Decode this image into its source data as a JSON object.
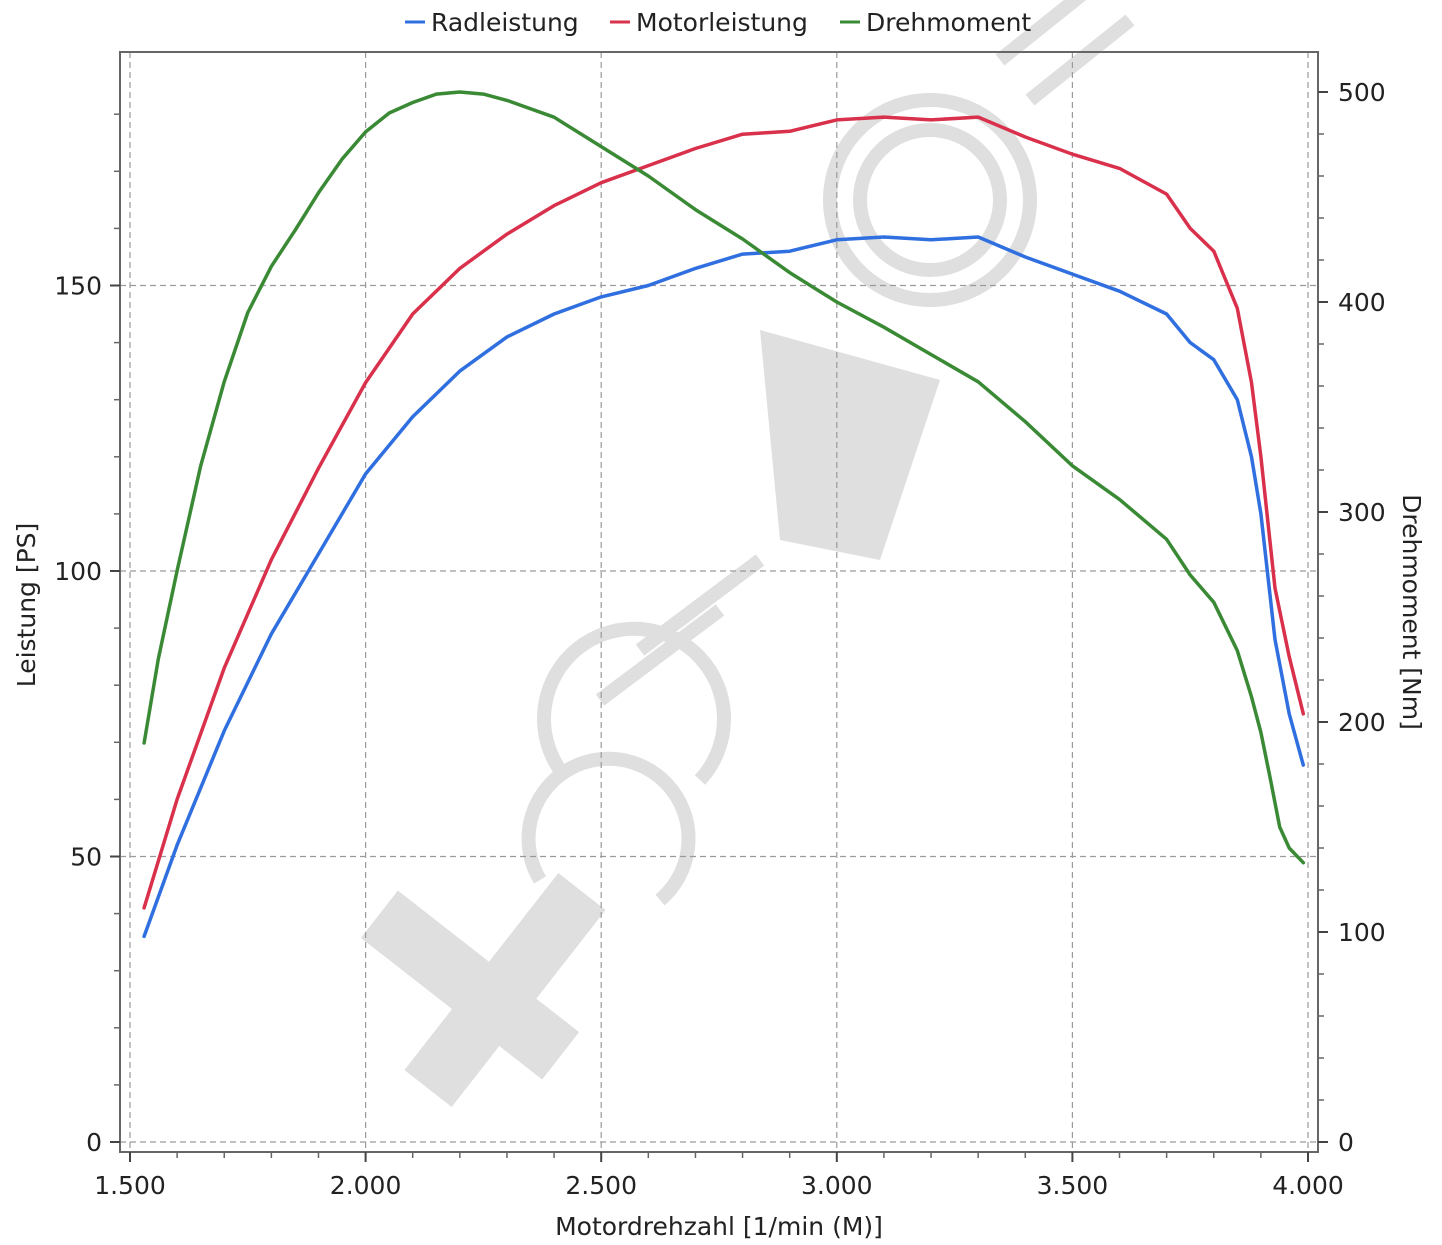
{
  "chart_data": {
    "type": "line",
    "xlabel": "Motordrehzahl [1/min (M)]",
    "ylabel_left": "Leistung [PS]",
    "ylabel_right": "Drehmoment [Nm]",
    "xlim": [
      1500,
      4000
    ],
    "ylim_left": [
      0,
      185
    ],
    "ylim_right": [
      0,
      518
    ],
    "x_ticks": [
      1500,
      2000,
      2500,
      3000,
      3500,
      4000
    ],
    "x_tick_labels": [
      "1.500",
      "2.000",
      "2.500",
      "3.000",
      "3.500",
      "4.000"
    ],
    "y_left_ticks": [
      0,
      50,
      100,
      150
    ],
    "y_left_tick_labels": [
      "0",
      "50",
      "100",
      "150"
    ],
    "y_right_ticks": [
      0,
      100,
      200,
      300,
      400,
      500
    ],
    "y_right_tick_labels": [
      "0",
      "100",
      "200",
      "300",
      "400",
      "500"
    ],
    "grid": true,
    "legend_position": "top-center",
    "series": [
      {
        "name": "Radleistung",
        "color": "#2f6fe0",
        "axis": "left",
        "x": [
          1530,
          1600,
          1700,
          1800,
          1900,
          2000,
          2100,
          2200,
          2300,
          2400,
          2500,
          2600,
          2700,
          2800,
          2900,
          3000,
          3100,
          3200,
          3300,
          3400,
          3500,
          3600,
          3700,
          3750,
          3800,
          3850,
          3880,
          3900,
          3930,
          3960,
          3990
        ],
        "values": [
          36,
          52,
          72,
          89,
          103,
          117,
          127,
          135,
          141,
          145,
          148,
          150,
          153,
          155.5,
          156,
          158,
          158.5,
          158,
          158.5,
          155,
          152,
          149,
          145,
          140,
          137,
          130,
          120,
          110,
          88,
          75,
          66
        ]
      },
      {
        "name": "Motorleistung",
        "color": "#d9314c",
        "axis": "left",
        "x": [
          1530,
          1600,
          1700,
          1800,
          1900,
          2000,
          2100,
          2200,
          2300,
          2400,
          2500,
          2600,
          2700,
          2800,
          2900,
          3000,
          3100,
          3200,
          3300,
          3400,
          3500,
          3600,
          3700,
          3750,
          3800,
          3850,
          3880,
          3900,
          3930,
          3960,
          3990
        ],
        "values": [
          41,
          60,
          83,
          102,
          118,
          133,
          145,
          153,
          159,
          164,
          168,
          171,
          174,
          176.5,
          177,
          179,
          179.5,
          179,
          179.5,
          176,
          173,
          170.5,
          166,
          160,
          156,
          146,
          133,
          120,
          97,
          85,
          75
        ]
      },
      {
        "name": "Drehmoment",
        "color": "#3a8a35",
        "axis": "right",
        "x": [
          1530,
          1560,
          1600,
          1650,
          1700,
          1750,
          1800,
          1850,
          1900,
          1950,
          2000,
          2050,
          2100,
          2150,
          2200,
          2250,
          2300,
          2400,
          2500,
          2600,
          2700,
          2800,
          2900,
          3000,
          3100,
          3200,
          3300,
          3400,
          3500,
          3600,
          3700,
          3750,
          3800,
          3850,
          3880,
          3900,
          3920,
          3940,
          3960,
          3990
        ],
        "values": [
          190,
          230,
          272,
          322,
          362,
          395,
          417,
          434,
          452,
          468,
          481,
          490,
          495,
          499,
          500,
          499,
          496,
          488,
          474,
          460,
          444,
          430,
          414,
          400,
          388,
          375,
          362,
          343,
          322,
          306,
          287,
          270,
          257,
          234,
          212,
          195,
          173,
          150,
          140,
          133
        ]
      }
    ]
  }
}
